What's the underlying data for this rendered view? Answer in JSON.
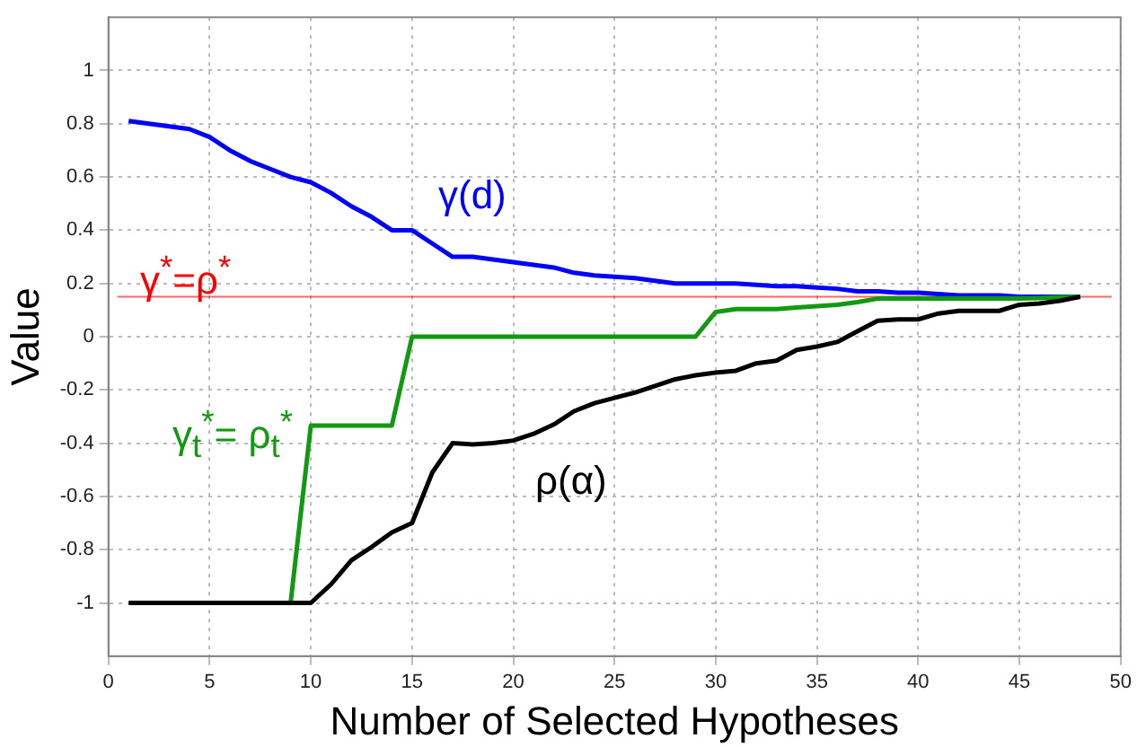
{
  "chart_data": {
    "type": "line",
    "xlabel": "Number of Selected Hypotheses",
    "ylabel": "Value",
    "x": [
      1,
      2,
      3,
      4,
      5,
      6,
      7,
      8,
      9,
      10,
      11,
      12,
      13,
      14,
      15,
      16,
      17,
      18,
      19,
      20,
      21,
      22,
      23,
      24,
      25,
      26,
      27,
      28,
      29,
      30,
      31,
      32,
      33,
      34,
      35,
      36,
      37,
      38,
      39,
      40,
      41,
      42,
      43,
      44,
      45,
      46,
      47,
      48
    ],
    "series": [
      {
        "name": "γ(d)",
        "color": "#0000ff",
        "values": [
          0.81,
          0.8,
          0.79,
          0.78,
          0.75,
          0.7,
          0.66,
          0.63,
          0.6,
          0.58,
          0.54,
          0.49,
          0.45,
          0.4,
          0.4,
          0.35,
          0.3,
          0.3,
          0.29,
          0.28,
          0.27,
          0.26,
          0.24,
          0.23,
          0.225,
          0.22,
          0.21,
          0.2,
          0.2,
          0.2,
          0.2,
          0.195,
          0.19,
          0.19,
          0.185,
          0.18,
          0.17,
          0.17,
          0.165,
          0.165,
          0.16,
          0.155,
          0.155,
          0.155,
          0.15,
          0.15,
          0.15,
          0.15
        ]
      },
      {
        "name": "γ$_{t}$$^{*}$= ρ$_{t}$$^{*}$",
        "color": "#119911",
        "values": [
          null,
          null,
          null,
          null,
          null,
          null,
          null,
          null,
          -1,
          -0.334,
          -0.334,
          -0.334,
          -0.334,
          -0.334,
          0,
          0,
          0,
          0,
          0,
          0,
          0,
          0,
          0,
          0,
          0,
          0,
          0,
          0,
          0,
          0.093,
          0.104,
          0.104,
          0.104,
          0.11,
          0.115,
          0.12,
          0.13,
          0.143,
          0.143,
          0.143,
          0.143,
          0.143,
          0.143,
          0.143,
          0.143,
          0.145,
          0.148,
          0.15
        ]
      },
      {
        "name": "ρ(α)",
        "color": "#000000",
        "values": [
          -1,
          -1,
          -1,
          -1,
          -1,
          -1,
          -1,
          -1,
          -1,
          -1,
          -0.93,
          -0.84,
          -0.79,
          -0.735,
          -0.7,
          -0.51,
          -0.4,
          -0.405,
          -0.4,
          -0.39,
          -0.365,
          -0.33,
          -0.28,
          -0.25,
          -0.23,
          -0.21,
          -0.185,
          -0.16,
          -0.145,
          -0.135,
          -0.128,
          -0.1,
          -0.09,
          -0.05,
          -0.037,
          -0.02,
          0.02,
          0.06,
          0.065,
          0.065,
          0.087,
          0.097,
          0.097,
          0.097,
          0.12,
          0.125,
          0.135,
          0.15
        ]
      }
    ],
    "ref_lines": [
      {
        "axis": "y",
        "value": 0.15,
        "label": "γ$^{*}$=ρ$^{*}$",
        "color": "#ff0000"
      }
    ],
    "xlim": [
      0,
      50
    ],
    "xticks": [
      0,
      5,
      10,
      15,
      20,
      25,
      30,
      35,
      40,
      45,
      50
    ],
    "ylim": [
      -1.2,
      1.2
    ],
    "yticks": [
      -1,
      -0.8,
      -0.6,
      -0.4,
      -0.2,
      0,
      0.2,
      0.4,
      0.6,
      0.8,
      1
    ],
    "grid": true,
    "legend": false,
    "marker": "none",
    "line_style": "solid"
  }
}
